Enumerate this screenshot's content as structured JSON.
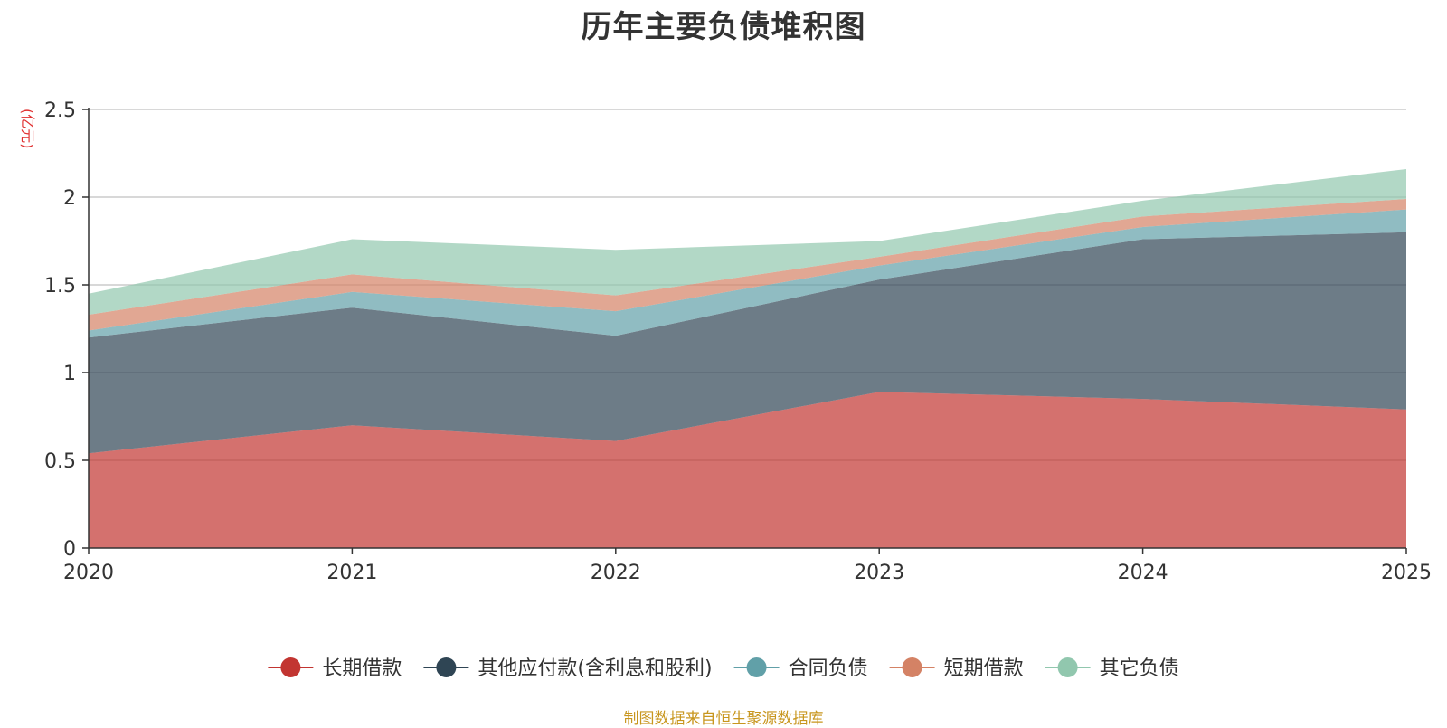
{
  "chart_data": {
    "type": "area",
    "title": "历年主要负债堆积图",
    "ylabel": "(亿元)",
    "xlabel": "",
    "x": [
      "2020",
      "2021",
      "2022",
      "2023",
      "2024",
      "2025"
    ],
    "yticks": [
      "0",
      "0.5",
      "1",
      "1.5",
      "2",
      "2.5"
    ],
    "ylim": [
      0,
      2.5
    ],
    "stacked": true,
    "series": [
      {
        "name": "长期借款",
        "color": "#c23531",
        "values": [
          0.54,
          0.7,
          0.61,
          0.89,
          0.85,
          0.79
        ]
      },
      {
        "name": "其他应付款(含利息和股利)",
        "color": "#2f4554",
        "values": [
          0.66,
          0.67,
          0.6,
          0.64,
          0.91,
          1.01
        ]
      },
      {
        "name": "合同负债",
        "color": "#61a0a8",
        "values": [
          0.04,
          0.09,
          0.14,
          0.08,
          0.07,
          0.13
        ]
      },
      {
        "name": "短期借款",
        "color": "#d48265",
        "values": [
          0.09,
          0.1,
          0.09,
          0.05,
          0.06,
          0.06
        ]
      },
      {
        "name": "其它负债",
        "color": "#91c7ae",
        "values": [
          0.12,
          0.2,
          0.26,
          0.09,
          0.09,
          0.17
        ]
      }
    ],
    "legend_position": "bottom-center"
  },
  "source_note": "制图数据来自恒生聚源数据库"
}
